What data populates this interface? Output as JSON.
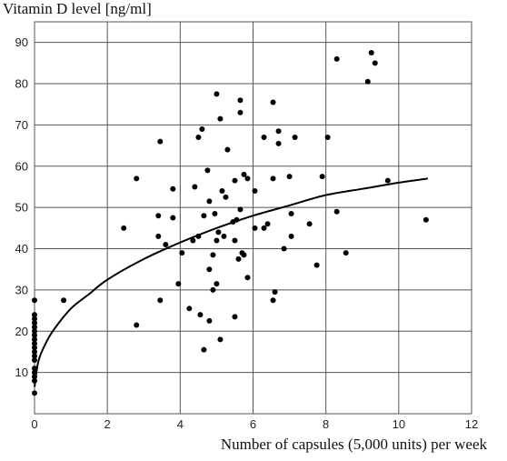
{
  "chart_data": {
    "type": "scatter",
    "ylabel": "Vitamin D level  [ng/ml]",
    "xlabel": "Number of capsules (5,000 units) per week",
    "xlim": [
      0,
      12
    ],
    "ylim": [
      0,
      95
    ],
    "x_ticks": [
      "0",
      "2",
      "4",
      "6",
      "8",
      "10",
      "12"
    ],
    "y_ticks": [
      "10",
      "20",
      "30",
      "40",
      "50",
      "60",
      "70",
      "80",
      "90"
    ],
    "grid": true,
    "points": [
      [
        0,
        5
      ],
      [
        0,
        8
      ],
      [
        0,
        9
      ],
      [
        0,
        10
      ],
      [
        0,
        11
      ],
      [
        0,
        13
      ],
      [
        0,
        14
      ],
      [
        0,
        15
      ],
      [
        0,
        16
      ],
      [
        0,
        17
      ],
      [
        0,
        18
      ],
      [
        0,
        19
      ],
      [
        0,
        20
      ],
      [
        0,
        21
      ],
      [
        0,
        22
      ],
      [
        0,
        23
      ],
      [
        0,
        24
      ],
      [
        0,
        27.5
      ],
      [
        0.8,
        27.5
      ],
      [
        2.45,
        45
      ],
      [
        2.8,
        57
      ],
      [
        2.8,
        21.5
      ],
      [
        3.4,
        48
      ],
      [
        3.4,
        43
      ],
      [
        3.45,
        66
      ],
      [
        3.45,
        27.5
      ],
      [
        3.6,
        41
      ],
      [
        3.8,
        54.5
      ],
      [
        3.8,
        47.5
      ],
      [
        3.95,
        31.5
      ],
      [
        4.05,
        39
      ],
      [
        4.25,
        25.5
      ],
      [
        4.35,
        42
      ],
      [
        4.4,
        55
      ],
      [
        4.5,
        67
      ],
      [
        4.5,
        43
      ],
      [
        4.55,
        24
      ],
      [
        4.6,
        69
      ],
      [
        4.65,
        48
      ],
      [
        4.65,
        15.5
      ],
      [
        4.75,
        59
      ],
      [
        4.8,
        51.5
      ],
      [
        4.8,
        35
      ],
      [
        4.8,
        22.5
      ],
      [
        4.9,
        38.5
      ],
      [
        4.9,
        30
      ],
      [
        4.95,
        48.5
      ],
      [
        5.0,
        77.5
      ],
      [
        5.0,
        42
      ],
      [
        5.0,
        31.5
      ],
      [
        5.05,
        44
      ],
      [
        5.1,
        71.5
      ],
      [
        5.1,
        18
      ],
      [
        5.15,
        54
      ],
      [
        5.2,
        43
      ],
      [
        5.25,
        52.5
      ],
      [
        5.3,
        64
      ],
      [
        5.45,
        46.5
      ],
      [
        5.5,
        56.5
      ],
      [
        5.5,
        23.5
      ],
      [
        5.5,
        42
      ],
      [
        5.55,
        47
      ],
      [
        5.6,
        37.5
      ],
      [
        5.65,
        76
      ],
      [
        5.65,
        73
      ],
      [
        5.65,
        49.5
      ],
      [
        5.7,
        39
      ],
      [
        5.75,
        58
      ],
      [
        5.75,
        38.5
      ],
      [
        5.85,
        57
      ],
      [
        5.85,
        33
      ],
      [
        6.05,
        54
      ],
      [
        6.05,
        45
      ],
      [
        6.3,
        67
      ],
      [
        6.3,
        45
      ],
      [
        6.4,
        46
      ],
      [
        6.55,
        75.5
      ],
      [
        6.55,
        57
      ],
      [
        6.55,
        27.5
      ],
      [
        6.6,
        29.5
      ],
      [
        6.7,
        68.5
      ],
      [
        6.7,
        65.5
      ],
      [
        6.85,
        40
      ],
      [
        7.0,
        57.5
      ],
      [
        7.05,
        48.5
      ],
      [
        7.05,
        43
      ],
      [
        7.15,
        67
      ],
      [
        7.55,
        46
      ],
      [
        7.75,
        36
      ],
      [
        7.9,
        57.5
      ],
      [
        8.05,
        67
      ],
      [
        8.3,
        86
      ],
      [
        8.3,
        49
      ],
      [
        8.55,
        39
      ],
      [
        9.15,
        80.5
      ],
      [
        9.25,
        87.5
      ],
      [
        9.35,
        85
      ],
      [
        9.7,
        56.5
      ],
      [
        10.75,
        47
      ]
    ],
    "fit_curve": {
      "x": [
        0,
        0.1,
        0.25,
        0.5,
        1,
        1.5,
        2,
        3,
        4,
        5,
        6,
        7,
        8,
        9,
        10,
        10.8
      ],
      "y": [
        6.5,
        12.5,
        16,
        20,
        25.5,
        29,
        32.5,
        37.5,
        41.5,
        45,
        48,
        50.5,
        53,
        54.5,
        56,
        57
      ]
    }
  }
}
